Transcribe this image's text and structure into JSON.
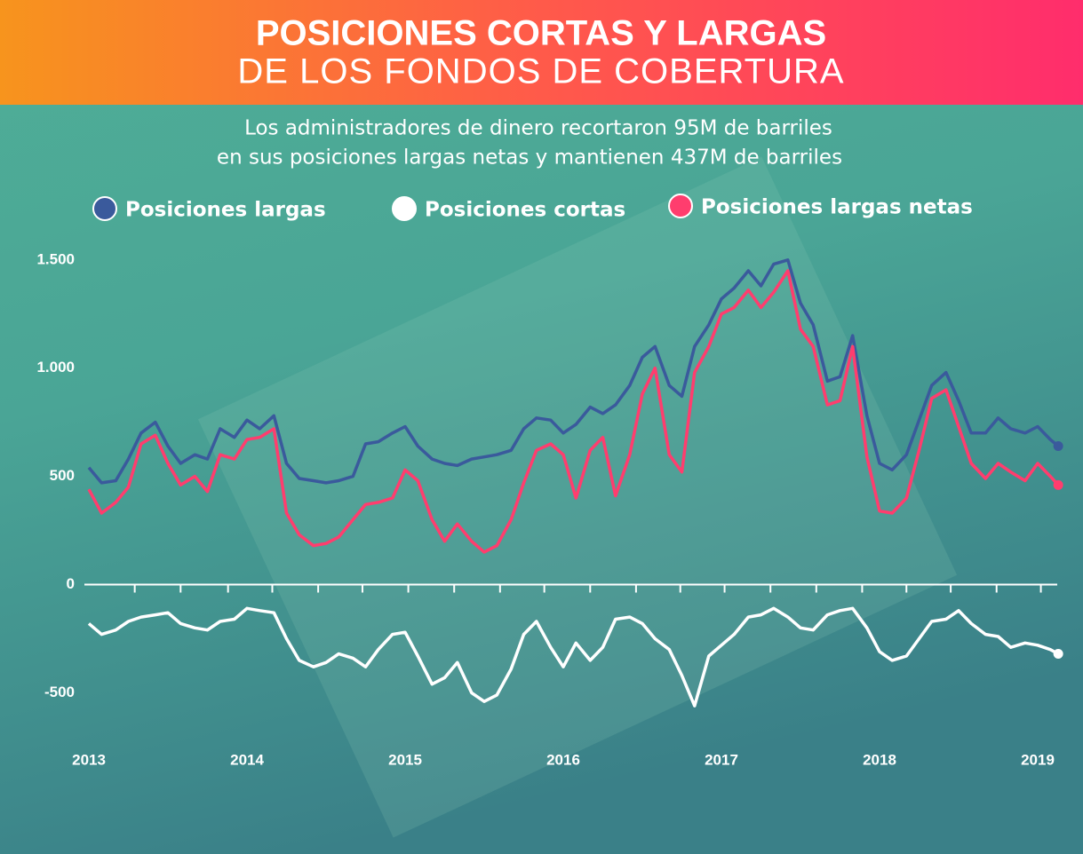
{
  "chart_data": {
    "type": "line",
    "title": "POSICIONES CORTAS Y LARGAS",
    "subtitle": "DE LOS FONDOS DE COBERTURA",
    "description": [
      "Los administradores de dinero recortaron 95M de barriles",
      "en sus posiciones largas netas y mantienen 437M de barriles"
    ],
    "legend": "top",
    "x": [
      2013,
      2013.08,
      2013.17,
      2013.25,
      2013.33,
      2013.42,
      2013.5,
      2013.58,
      2013.67,
      2013.75,
      2013.83,
      2013.92,
      2014,
      2014.08,
      2014.17,
      2014.25,
      2014.33,
      2014.42,
      2014.5,
      2014.58,
      2014.67,
      2014.75,
      2014.83,
      2014.92,
      2015,
      2015.08,
      2015.17,
      2015.25,
      2015.33,
      2015.42,
      2015.5,
      2015.58,
      2015.67,
      2015.75,
      2015.83,
      2015.92,
      2016,
      2016.08,
      2016.17,
      2016.25,
      2016.33,
      2016.42,
      2016.5,
      2016.58,
      2016.67,
      2016.75,
      2016.83,
      2016.92,
      2017,
      2017.08,
      2017.17,
      2017.25,
      2017.33,
      2017.42,
      2017.5,
      2017.58,
      2017.67,
      2017.75,
      2017.83,
      2017.92,
      2018,
      2018.08,
      2018.17,
      2018.25,
      2018.33,
      2018.42,
      2018.5,
      2018.58,
      2018.67,
      2018.75,
      2018.83,
      2018.92,
      2019,
      2019.08,
      2019.13
    ],
    "series": [
      {
        "name": "Posiciones largas",
        "color": "#3a5a9c",
        "values": [
          540,
          470,
          480,
          580,
          700,
          750,
          640,
          560,
          600,
          580,
          720,
          680,
          760,
          720,
          780,
          560,
          490,
          480,
          470,
          480,
          500,
          650,
          660,
          700,
          730,
          640,
          580,
          560,
          550,
          580,
          590,
          600,
          620,
          720,
          770,
          760,
          700,
          740,
          820,
          790,
          830,
          920,
          1050,
          1100,
          920,
          870,
          1100,
          1200,
          1320,
          1370,
          1450,
          1380,
          1480,
          1500,
          1300,
          1200,
          940,
          960,
          1150,
          780,
          560,
          530,
          600,
          760,
          920,
          980,
          850,
          700,
          700,
          770,
          720,
          700,
          730,
          670,
          640
        ]
      },
      {
        "name": "Posiciones cortas",
        "color": "#ffffff",
        "values": [
          -180,
          -230,
          -210,
          -170,
          -150,
          -140,
          -130,
          -180,
          -200,
          -210,
          -170,
          -160,
          -110,
          -120,
          -130,
          -250,
          -350,
          -380,
          -360,
          -320,
          -340,
          -380,
          -300,
          -230,
          -220,
          -330,
          -460,
          -430,
          -360,
          -500,
          -540,
          -510,
          -390,
          -230,
          -170,
          -290,
          -380,
          -270,
          -350,
          -290,
          -160,
          -150,
          -180,
          -250,
          -300,
          -420,
          -560,
          -330,
          -280,
          -230,
          -150,
          -140,
          -110,
          -150,
          -200,
          -210,
          -140,
          -120,
          -110,
          -200,
          -310,
          -350,
          -330,
          -250,
          -170,
          -160,
          -120,
          -180,
          -230,
          -240,
          -290,
          -270,
          -280,
          -300,
          -320
        ]
      },
      {
        "name": "Posiciones largas netas",
        "color": "#ff3d6e",
        "values": [
          440,
          330,
          380,
          450,
          650,
          690,
          560,
          460,
          500,
          430,
          600,
          580,
          670,
          680,
          720,
          330,
          230,
          180,
          190,
          220,
          300,
          370,
          380,
          400,
          530,
          480,
          300,
          200,
          280,
          200,
          150,
          180,
          300,
          470,
          620,
          650,
          600,
          400,
          620,
          680,
          410,
          600,
          880,
          1000,
          600,
          520,
          980,
          1100,
          1250,
          1280,
          1360,
          1280,
          1350,
          1450,
          1180,
          1100,
          830,
          850,
          1100,
          590,
          340,
          330,
          400,
          620,
          860,
          900,
          730,
          560,
          490,
          560,
          520,
          480,
          560,
          500,
          460
        ]
      }
    ],
    "xlim": [
      2012.97,
      2019.2
    ],
    "xticks": [
      2013,
      2014,
      2015,
      2016,
      2017,
      2018,
      2019
    ],
    "xminorticks": [
      2013.29,
      2013.58,
      2013.88,
      2014.16,
      2014.45,
      2014.73,
      2015.02,
      2015.31,
      2015.6,
      2015.88,
      2016.17,
      2016.46,
      2016.74,
      2017.02,
      2017.31,
      2017.6,
      2017.89,
      2018.17,
      2018.45,
      2018.74,
      2019.02
    ],
    "ylim": [
      -650,
      1700
    ],
    "yticks": [
      -500,
      0,
      500,
      {
        "value": 1000,
        "label": "1.000"
      },
      {
        "value": 1500,
        "label": "1.500"
      }
    ]
  }
}
